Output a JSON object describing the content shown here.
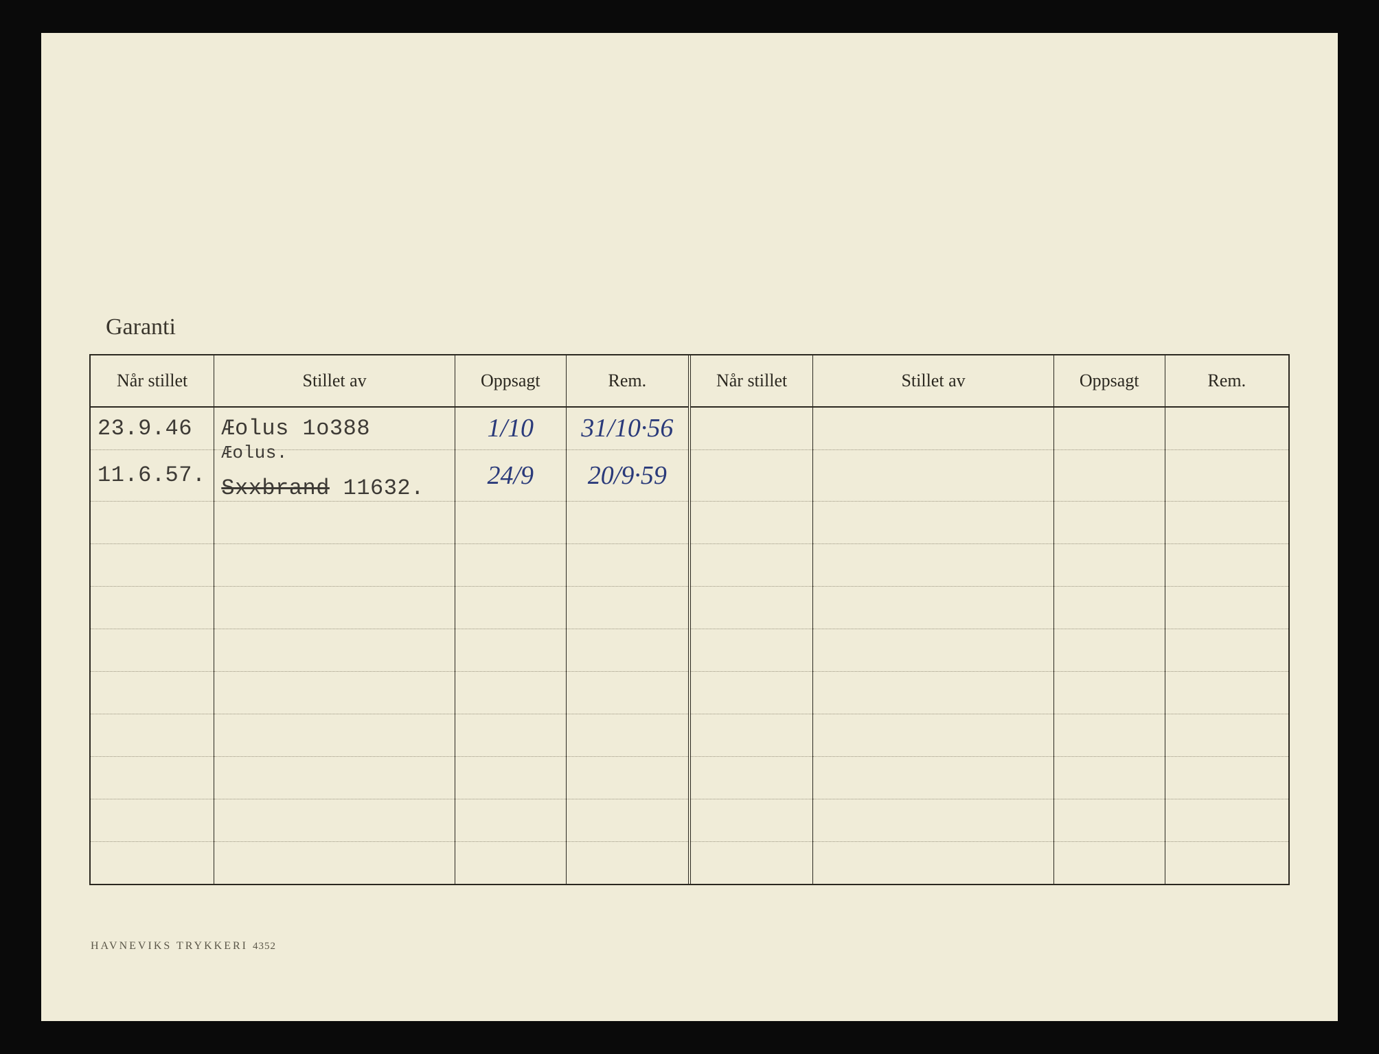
{
  "page": {
    "background_color": "#0a0a0a",
    "paper_color": "#f0ecd8",
    "ink_color": "#2b2820",
    "typed_color": "#3d3a35",
    "hand_color": "#2a3a7a"
  },
  "title": "Garanti",
  "columns": {
    "left": {
      "naar_stillet": "Når stillet",
      "stillet_av": "Stillet av",
      "oppsagt": "Oppsagt",
      "rem": "Rem."
    },
    "right": {
      "naar_stillet": "Når stillet",
      "stillet_av": "Stillet av",
      "oppsagt": "Oppsagt",
      "rem": "Rem."
    }
  },
  "col_widths": {
    "naar_stillet": "10%",
    "stillet_av": "19.5%",
    "oppsagt": "9%",
    "rem": "10%"
  },
  "rows": [
    {
      "naar_stillet": "23.9.46",
      "stillet_av": "Æolus  1o388",
      "stillet_av_above": "",
      "stillet_av_strike": "",
      "oppsagt": "1/10",
      "rem": "31/10·56"
    },
    {
      "naar_stillet": "11.6.57.",
      "stillet_av": " 11632.",
      "stillet_av_above": "Æolus.",
      "stillet_av_strike": "Sxxbrand",
      "oppsagt": "24/9",
      "rem": "20/9·59"
    }
  ],
  "empty_row_count": 9,
  "footer": {
    "text": "HAVNEVIKS TRYKKERI",
    "number": "4352"
  }
}
